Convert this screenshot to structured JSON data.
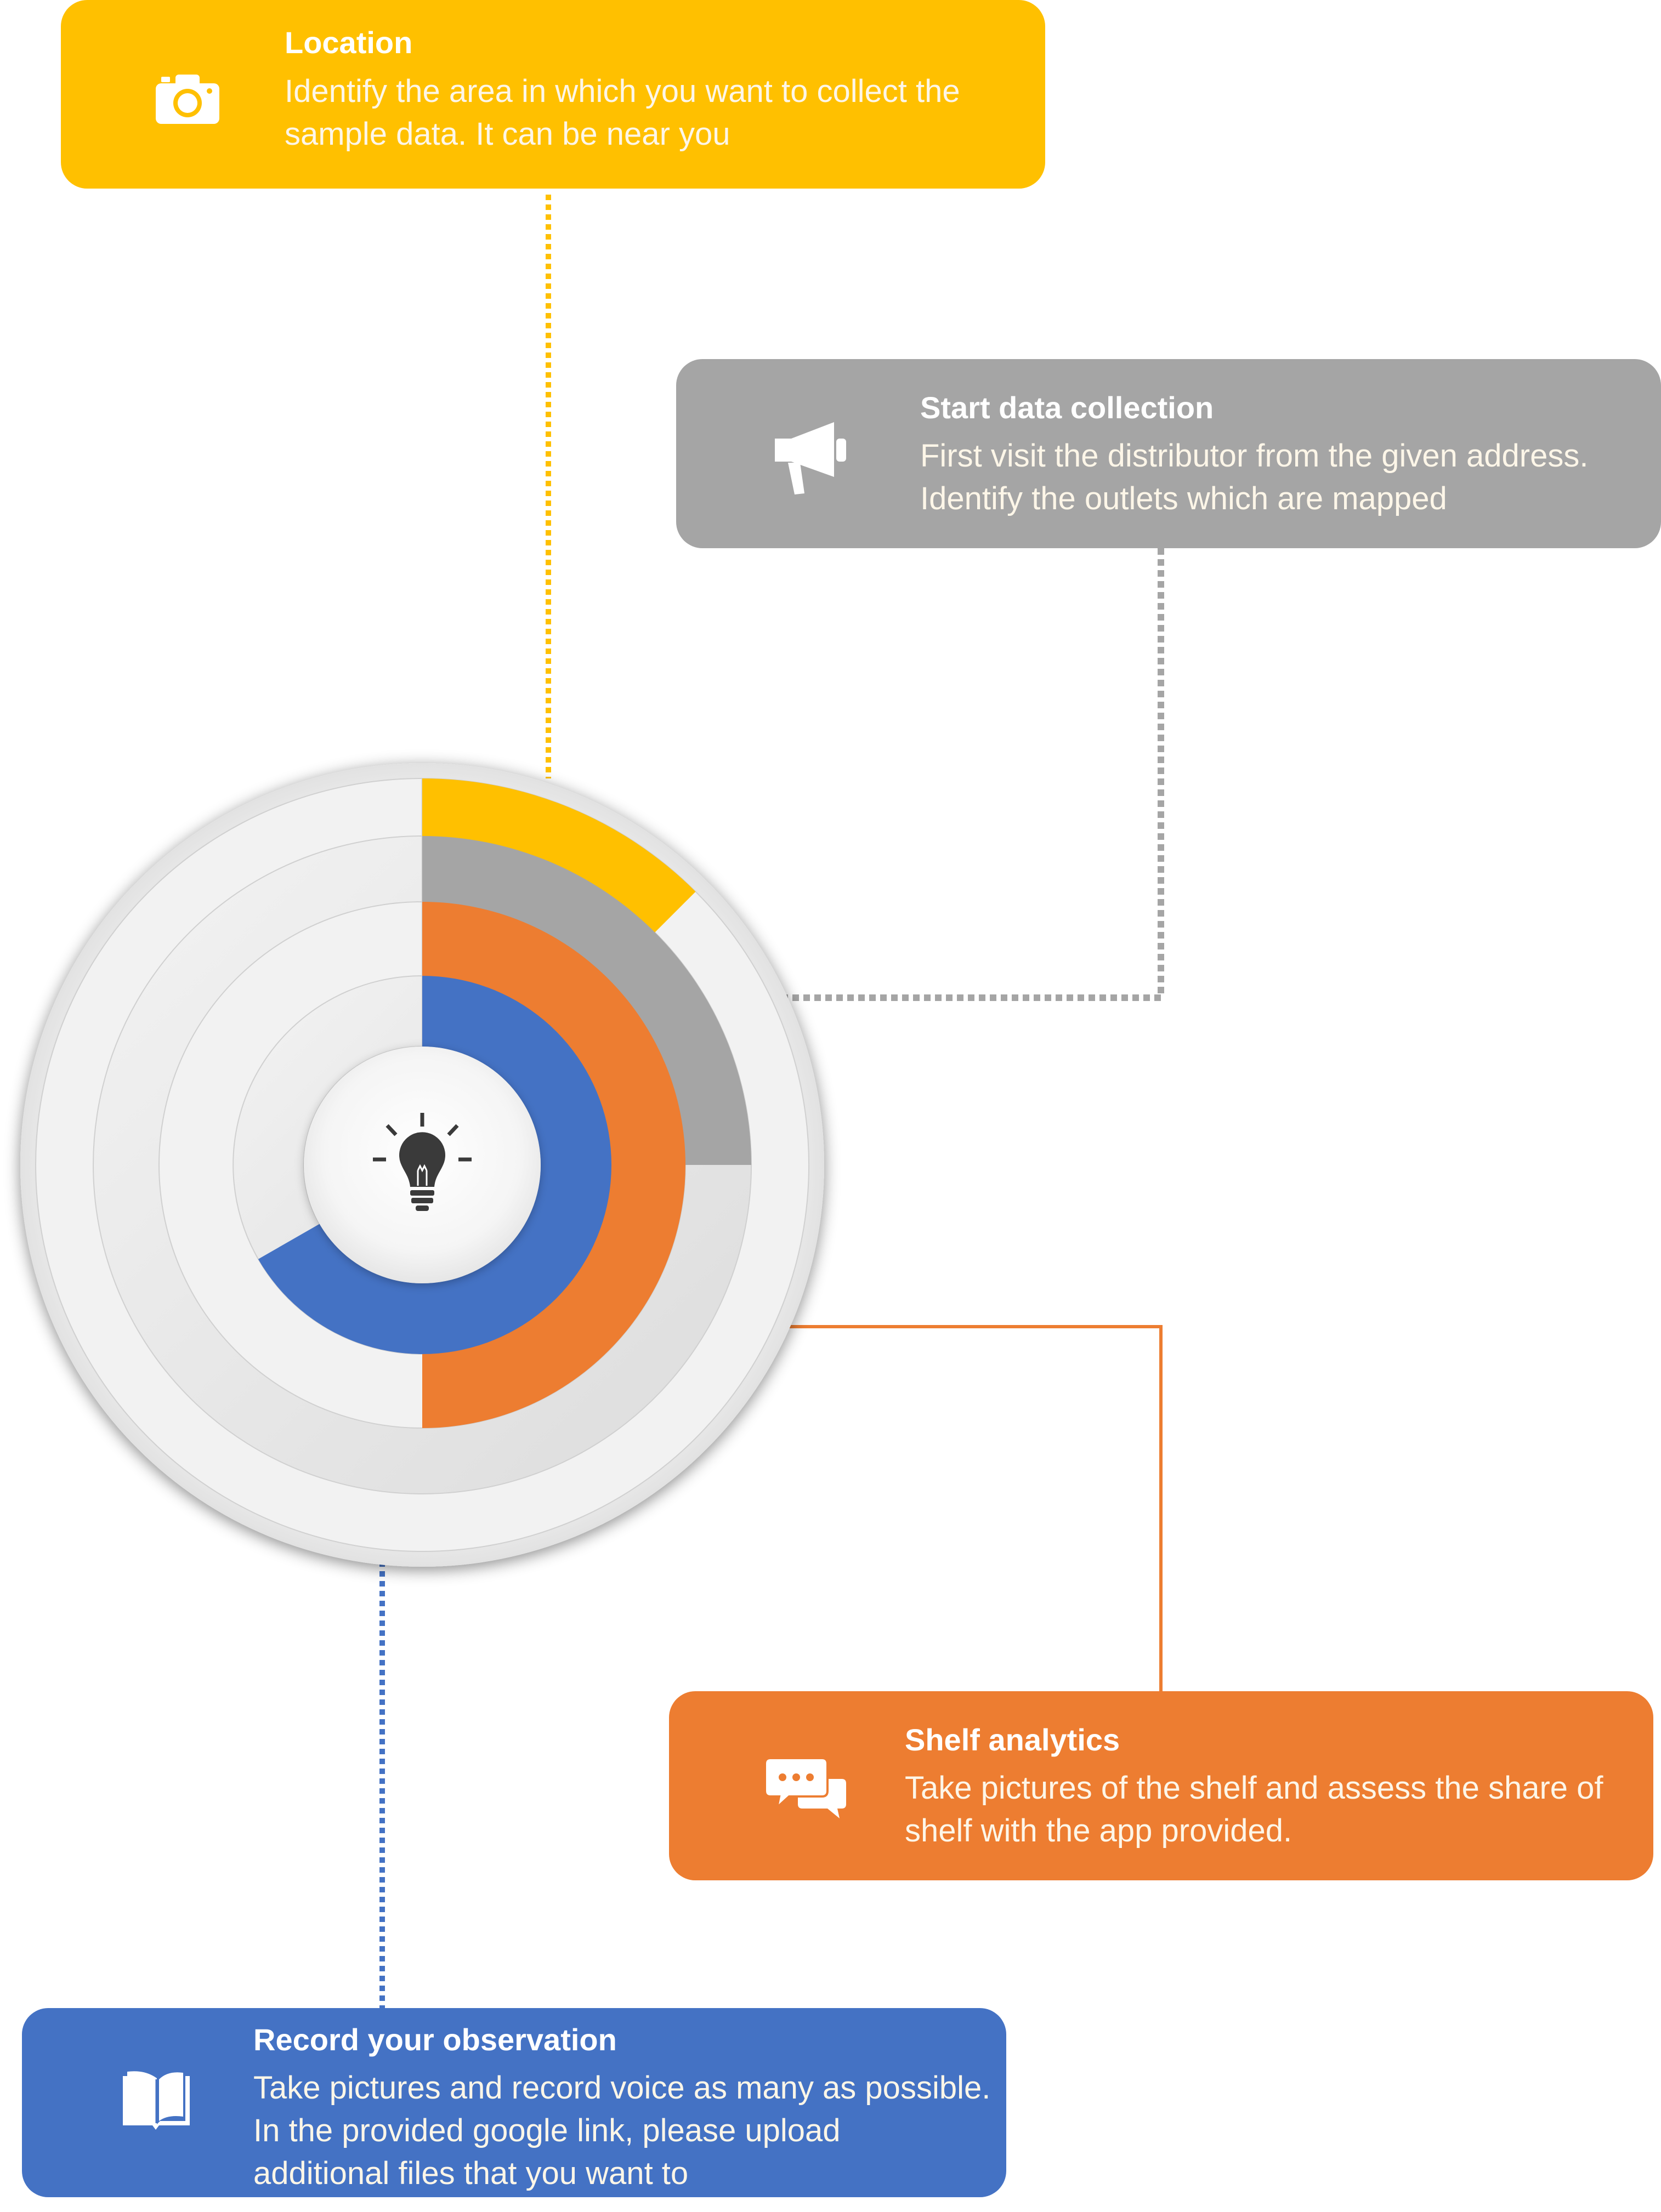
{
  "steps": [
    {
      "id": "location",
      "title": "Location",
      "lines": [
        "Identify the area in which you want to collect the",
        "sample data. It can be near you"
      ],
      "icon": "camera-icon",
      "color": "#ffc000"
    },
    {
      "id": "start",
      "title": "Start data collection",
      "lines": [
        "First visit the distributor  from the given address.",
        "Identify the outlets which are mapped"
      ],
      "icon": "megaphone-icon",
      "color": "#a5a5a5"
    },
    {
      "id": "shelf",
      "title": "Shelf analytics",
      "lines": [
        "Take pictures of the shelf and assess the share of",
        "shelf with the app provided."
      ],
      "icon": "chat-bubbles-icon",
      "color": "#ed7d31"
    },
    {
      "id": "record",
      "title": "Record your observation",
      "lines": [
        "Take pictures and record voice as many as possible.",
        "In the provided google link, please upload",
        "additional files that you want to"
      ],
      "icon": "open-book-icon",
      "color": "#4472c4"
    }
  ],
  "center_icon": "lightbulb-icon",
  "rings": [
    {
      "step": "location",
      "color": "#ffc000",
      "share": 0.125
    },
    {
      "step": "start",
      "color": "#a5a5a5",
      "share": 0.25
    },
    {
      "step": "shelf",
      "color": "#ed7d31",
      "share": 0.5
    },
    {
      "step": "record",
      "color": "#4472c4",
      "share": 0.667
    }
  ]
}
